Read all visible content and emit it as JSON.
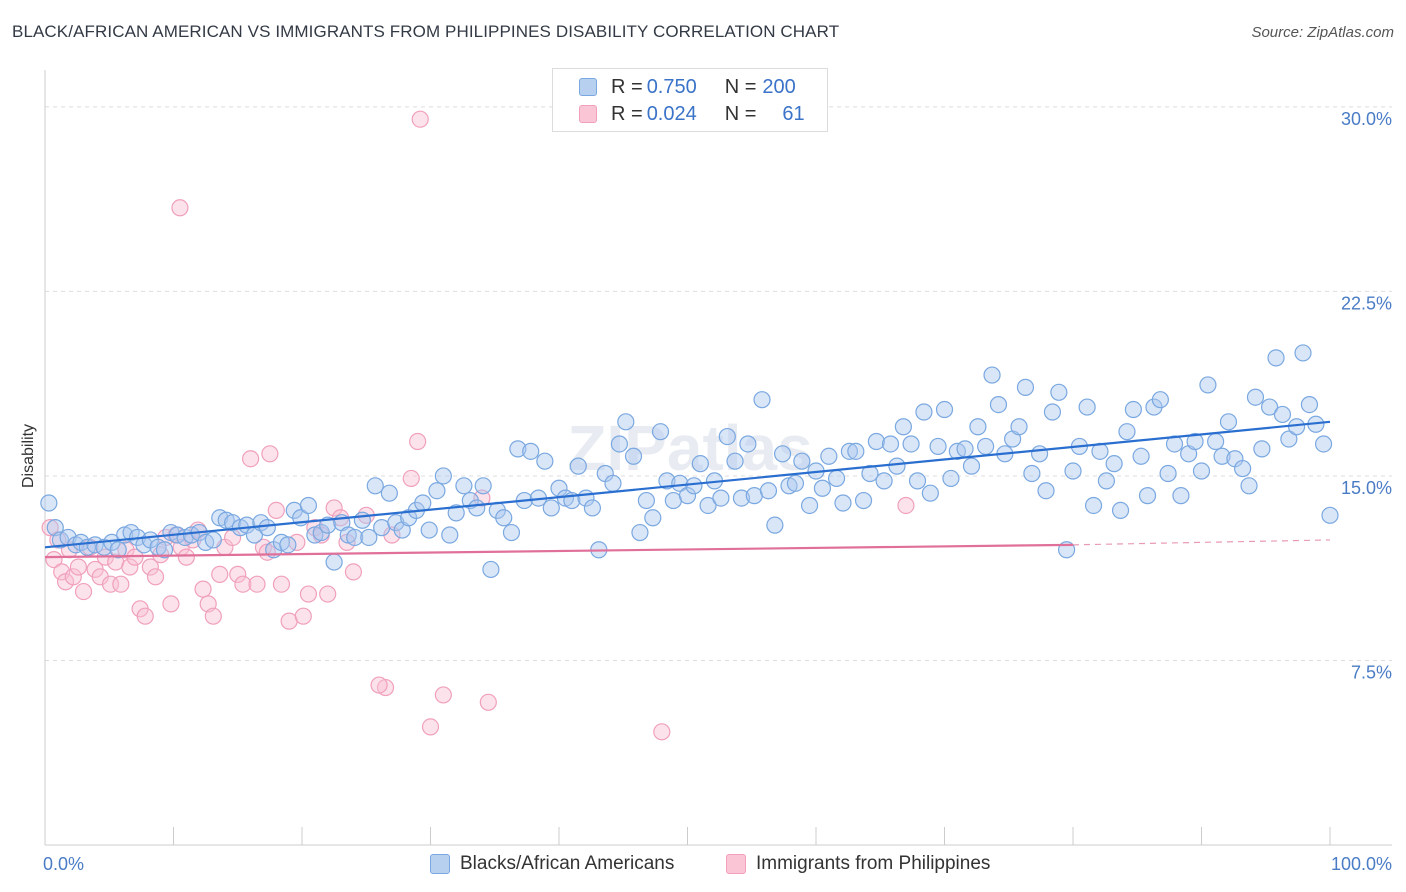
{
  "title": "BLACK/AFRICAN AMERICAN VS IMMIGRANTS FROM PHILIPPINES DISABILITY CORRELATION CHART",
  "source": "Source: ZipAtlas.com",
  "watermark": "ZIPatlas",
  "legend_top": {
    "row1": {
      "r_label": "R = ",
      "r_value": "0.750",
      "n_label": "N = ",
      "n_value": "200"
    },
    "row2": {
      "r_label": "R = ",
      "r_value": "0.024",
      "n_label": "N = ",
      "n_value": "61"
    }
  },
  "colors": {
    "blue": "#7aa8e0",
    "blue_line": "#2a6fd0",
    "pink": "#f0a0bc",
    "pink_line": "#e0709a",
    "tick_label": "#4a7cc6"
  },
  "chart_data": {
    "type": "scatter",
    "title": "BLACK/AFRICAN AMERICAN VS IMMIGRANTS FROM PHILIPPINES DISABILITY CORRELATION CHART",
    "xlabel": "",
    "ylabel": "Disability",
    "xlim": [
      0,
      100
    ],
    "ylim": [
      0,
      31.5
    ],
    "x_tick_labels": [
      "0.0%",
      "100.0%"
    ],
    "y_ticks": [
      7.5,
      15.0,
      22.5,
      30.0
    ],
    "y_tick_labels": [
      "7.5%",
      "15.0%",
      "22.5%",
      "30.0%"
    ],
    "grid": "horizontal dashed",
    "legend": "top-center and bottom",
    "series": [
      {
        "name": "Blacks/African Americans",
        "color": "#7aa8e0",
        "trend": {
          "x": [
            0,
            100
          ],
          "y": [
            12.1,
            17.2
          ]
        },
        "points": [
          [
            0.3,
            13.9
          ],
          [
            0.8,
            12.9
          ],
          [
            1.2,
            12.4
          ],
          [
            1.8,
            12.5
          ],
          [
            2.4,
            12.2
          ],
          [
            2.8,
            12.3
          ],
          [
            3.3,
            12.1
          ],
          [
            3.9,
            12.2
          ],
          [
            4.6,
            12.1
          ],
          [
            5.2,
            12.3
          ],
          [
            5.7,
            12.0
          ],
          [
            6.2,
            12.6
          ],
          [
            6.7,
            12.7
          ],
          [
            7.2,
            12.5
          ],
          [
            7.7,
            12.2
          ],
          [
            8.2,
            12.4
          ],
          [
            8.8,
            12.1
          ],
          [
            9.3,
            12.0
          ],
          [
            9.8,
            12.7
          ],
          [
            10.3,
            12.6
          ],
          [
            10.9,
            12.5
          ],
          [
            11.4,
            12.6
          ],
          [
            12.0,
            12.7
          ],
          [
            12.5,
            12.3
          ],
          [
            13.1,
            12.4
          ],
          [
            13.6,
            13.3
          ],
          [
            14.1,
            13.2
          ],
          [
            14.6,
            13.1
          ],
          [
            15.2,
            12.9
          ],
          [
            15.7,
            13.0
          ],
          [
            16.3,
            12.6
          ],
          [
            16.8,
            13.1
          ],
          [
            17.3,
            12.9
          ],
          [
            17.8,
            12.0
          ],
          [
            18.4,
            12.3
          ],
          [
            18.9,
            12.2
          ],
          [
            19.4,
            13.6
          ],
          [
            19.9,
            13.3
          ],
          [
            20.5,
            13.8
          ],
          [
            21.0,
            12.6
          ],
          [
            21.5,
            12.7
          ],
          [
            22.0,
            13.0
          ],
          [
            22.5,
            11.5
          ],
          [
            23.1,
            13.1
          ],
          [
            23.6,
            12.6
          ],
          [
            24.1,
            12.5
          ],
          [
            24.7,
            13.2
          ],
          [
            25.2,
            12.5
          ],
          [
            25.7,
            14.6
          ],
          [
            26.2,
            12.9
          ],
          [
            26.8,
            14.3
          ],
          [
            27.3,
            13.1
          ],
          [
            27.8,
            12.8
          ],
          [
            28.3,
            13.3
          ],
          [
            28.9,
            13.6
          ],
          [
            29.4,
            13.9
          ],
          [
            29.9,
            12.8
          ],
          [
            30.5,
            14.4
          ],
          [
            31.0,
            15.0
          ],
          [
            31.5,
            12.6
          ],
          [
            32.0,
            13.5
          ],
          [
            32.6,
            14.6
          ],
          [
            33.1,
            14.0
          ],
          [
            33.6,
            13.7
          ],
          [
            34.1,
            14.6
          ],
          [
            34.7,
            11.2
          ],
          [
            35.2,
            13.6
          ],
          [
            35.7,
            13.3
          ],
          [
            36.3,
            12.7
          ],
          [
            36.8,
            16.1
          ],
          [
            37.3,
            14.0
          ],
          [
            37.8,
            16.0
          ],
          [
            38.4,
            14.1
          ],
          [
            38.9,
            15.6
          ],
          [
            39.4,
            13.7
          ],
          [
            40.0,
            14.5
          ],
          [
            40.5,
            14.1
          ],
          [
            41.0,
            14.0
          ],
          [
            41.5,
            15.4
          ],
          [
            42.1,
            14.1
          ],
          [
            42.6,
            13.7
          ],
          [
            43.1,
            12.0
          ],
          [
            43.6,
            15.1
          ],
          [
            44.2,
            14.7
          ],
          [
            44.7,
            16.3
          ],
          [
            45.2,
            17.2
          ],
          [
            45.8,
            15.8
          ],
          [
            46.3,
            12.7
          ],
          [
            46.8,
            14.0
          ],
          [
            47.3,
            13.3
          ],
          [
            47.9,
            16.8
          ],
          [
            48.4,
            14.8
          ],
          [
            48.9,
            14.0
          ],
          [
            49.4,
            14.7
          ],
          [
            50.0,
            14.2
          ],
          [
            50.5,
            14.6
          ],
          [
            51.0,
            15.5
          ],
          [
            51.6,
            13.8
          ],
          [
            52.1,
            14.8
          ],
          [
            52.6,
            14.1
          ],
          [
            53.1,
            16.6
          ],
          [
            53.7,
            15.6
          ],
          [
            54.2,
            14.1
          ],
          [
            54.7,
            16.3
          ],
          [
            55.2,
            14.2
          ],
          [
            55.8,
            18.1
          ],
          [
            56.3,
            14.4
          ],
          [
            56.8,
            13.0
          ],
          [
            57.4,
            15.9
          ],
          [
            57.9,
            14.6
          ],
          [
            58.4,
            14.7
          ],
          [
            58.9,
            15.6
          ],
          [
            59.5,
            13.8
          ],
          [
            60.0,
            15.2
          ],
          [
            60.5,
            14.5
          ],
          [
            61.0,
            15.8
          ],
          [
            61.6,
            14.9
          ],
          [
            62.1,
            13.9
          ],
          [
            62.6,
            16.0
          ],
          [
            63.1,
            16.0
          ],
          [
            63.7,
            14.0
          ],
          [
            64.2,
            15.1
          ],
          [
            64.7,
            16.4
          ],
          [
            65.3,
            14.8
          ],
          [
            65.8,
            16.3
          ],
          [
            66.3,
            15.4
          ],
          [
            66.8,
            17.0
          ],
          [
            67.4,
            16.3
          ],
          [
            67.9,
            14.8
          ],
          [
            68.4,
            17.6
          ],
          [
            68.9,
            14.3
          ],
          [
            69.5,
            16.2
          ],
          [
            70.0,
            17.7
          ],
          [
            70.5,
            14.9
          ],
          [
            71.0,
            16.0
          ],
          [
            71.6,
            16.1
          ],
          [
            72.1,
            15.4
          ],
          [
            72.6,
            17.0
          ],
          [
            73.2,
            16.2
          ],
          [
            73.7,
            19.1
          ],
          [
            74.2,
            17.9
          ],
          [
            74.7,
            15.9
          ],
          [
            75.3,
            16.5
          ],
          [
            75.8,
            17.0
          ],
          [
            76.3,
            18.6
          ],
          [
            76.8,
            15.1
          ],
          [
            77.4,
            15.9
          ],
          [
            77.9,
            14.4
          ],
          [
            78.4,
            17.6
          ],
          [
            78.9,
            18.4
          ],
          [
            79.5,
            12.0
          ],
          [
            80.0,
            15.2
          ],
          [
            80.5,
            16.2
          ],
          [
            81.1,
            17.8
          ],
          [
            81.6,
            13.8
          ],
          [
            82.1,
            16.0
          ],
          [
            82.6,
            14.8
          ],
          [
            83.2,
            15.5
          ],
          [
            83.7,
            13.6
          ],
          [
            84.2,
            16.8
          ],
          [
            84.7,
            17.7
          ],
          [
            85.3,
            15.8
          ],
          [
            85.8,
            14.2
          ],
          [
            86.3,
            17.8
          ],
          [
            86.8,
            18.1
          ],
          [
            87.4,
            15.1
          ],
          [
            87.9,
            16.3
          ],
          [
            88.4,
            14.2
          ],
          [
            89.0,
            15.9
          ],
          [
            89.5,
            16.4
          ],
          [
            90.0,
            15.2
          ],
          [
            90.5,
            18.7
          ],
          [
            91.1,
            16.4
          ],
          [
            91.6,
            15.8
          ],
          [
            92.1,
            17.2
          ],
          [
            92.6,
            15.7
          ],
          [
            93.2,
            15.3
          ],
          [
            93.7,
            14.6
          ],
          [
            94.2,
            18.2
          ],
          [
            94.7,
            16.1
          ],
          [
            95.3,
            17.8
          ],
          [
            95.8,
            19.8
          ],
          [
            96.3,
            17.5
          ],
          [
            96.8,
            16.5
          ],
          [
            97.4,
            17.0
          ],
          [
            97.9,
            20.0
          ],
          [
            98.4,
            17.9
          ],
          [
            98.9,
            17.1
          ],
          [
            99.5,
            16.3
          ],
          [
            100.0,
            13.4
          ]
        ]
      },
      {
        "name": "Immigrants from Philippines",
        "color": "#f0a0bc",
        "trend": {
          "x": [
            0,
            80
          ],
          "y": [
            11.7,
            12.2
          ]
        },
        "trend_dashed": {
          "x": [
            80,
            100
          ],
          "y": [
            12.2,
            12.4
          ]
        },
        "points": [
          [
            0.4,
            12.9
          ],
          [
            0.7,
            11.6
          ],
          [
            1.0,
            12.4
          ],
          [
            1.3,
            11.1
          ],
          [
            1.6,
            10.7
          ],
          [
            1.9,
            12.0
          ],
          [
            2.2,
            10.9
          ],
          [
            2.6,
            11.3
          ],
          [
            3.0,
            10.3
          ],
          [
            3.5,
            12.1
          ],
          [
            3.9,
            11.2
          ],
          [
            4.3,
            10.9
          ],
          [
            4.7,
            11.7
          ],
          [
            5.1,
            10.6
          ],
          [
            5.5,
            11.5
          ],
          [
            5.9,
            10.6
          ],
          [
            6.3,
            12.0
          ],
          [
            6.6,
            11.3
          ],
          [
            7.0,
            11.7
          ],
          [
            7.4,
            9.6
          ],
          [
            7.8,
            9.3
          ],
          [
            8.2,
            11.3
          ],
          [
            8.6,
            10.9
          ],
          [
            9.0,
            11.8
          ],
          [
            9.4,
            12.5
          ],
          [
            9.8,
            9.8
          ],
          [
            10.2,
            12.6
          ],
          [
            10.6,
            12.1
          ],
          [
            11.0,
            11.7
          ],
          [
            11.5,
            12.4
          ],
          [
            11.9,
            12.8
          ],
          [
            12.3,
            10.4
          ],
          [
            12.7,
            9.8
          ],
          [
            13.1,
            9.3
          ],
          [
            13.6,
            11.0
          ],
          [
            14.0,
            12.1
          ],
          [
            14.6,
            12.5
          ],
          [
            15.0,
            11.0
          ],
          [
            15.4,
            10.6
          ],
          [
            16.0,
            15.7
          ],
          [
            16.5,
            10.6
          ],
          [
            17.0,
            12.1
          ],
          [
            17.5,
            15.9
          ],
          [
            18.0,
            13.6
          ],
          [
            18.4,
            10.6
          ],
          [
            19.0,
            9.1
          ],
          [
            19.6,
            12.3
          ],
          [
            20.1,
            9.3
          ],
          [
            20.5,
            10.2
          ],
          [
            21.0,
            12.9
          ],
          [
            21.5,
            12.6
          ],
          [
            22.0,
            10.2
          ],
          [
            22.5,
            13.7
          ],
          [
            23.0,
            13.3
          ],
          [
            23.5,
            12.3
          ],
          [
            24.0,
            11.1
          ],
          [
            25.0,
            13.4
          ],
          [
            26.5,
            6.4
          ],
          [
            27.0,
            12.6
          ],
          [
            28.5,
            14.9
          ],
          [
            29.0,
            16.4
          ]
        ],
        "outliers": [
          [
            10.5,
            25.9
          ],
          [
            29.2,
            29.5
          ],
          [
            30.0,
            4.8
          ],
          [
            31.0,
            6.1
          ],
          [
            34.5,
            5.8
          ],
          [
            48.0,
            4.6
          ],
          [
            67.0,
            13.8
          ],
          [
            26.0,
            6.5
          ],
          [
            34.0,
            14.1
          ],
          [
            17.3,
            11.9
          ]
        ]
      }
    ]
  },
  "bottom_legend": [
    {
      "label": "Blacks/African Americans"
    },
    {
      "label": "Immigrants from Philippines"
    }
  ]
}
